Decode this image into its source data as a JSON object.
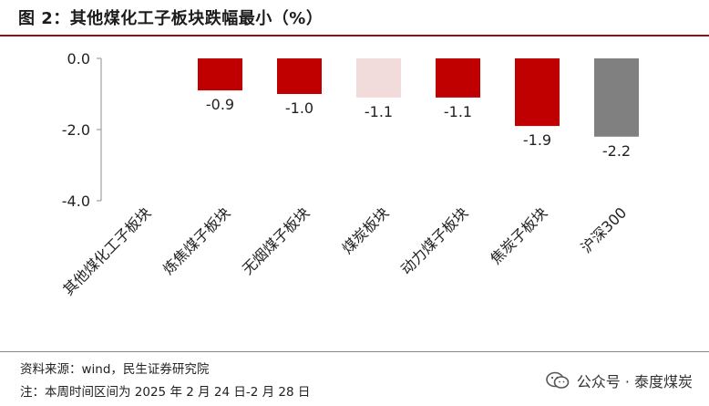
{
  "title": "图 2：其他煤化工子板块跌幅最小（%）",
  "chart_data": {
    "type": "bar",
    "categories": [
      "其他煤化工子板块",
      "炼焦煤子板块",
      "无烟煤子板块",
      "煤炭板块",
      "动力煤子板块",
      "焦炭子板块",
      "沪深300"
    ],
    "values": [
      0.0,
      -0.9,
      -1.0,
      -1.1,
      -1.1,
      -1.9,
      -2.2
    ],
    "value_labels": [
      "",
      "-0.9",
      "-1.0",
      "-1.1",
      "-1.1",
      "-1.9",
      "-2.2"
    ],
    "colors": [
      "#c00000",
      "#c00000",
      "#c00000",
      "#f2dcdb",
      "#c00000",
      "#c00000",
      "#808080"
    ],
    "yticks": [
      "0.0",
      "-2.0",
      "-4.0"
    ],
    "ytick_values": [
      0,
      -2,
      -4
    ],
    "ylim": [
      -4,
      0
    ],
    "grid": false,
    "legend": "none"
  },
  "footer": {
    "source": "资料来源：wind，民生证券研究院",
    "period": "注：本周时间区间为 2025 年 2 月 24 日-2 月 28 日"
  },
  "watermark": {
    "text": "公众号 · 泰度煤炭",
    "icon": "wechat-icon"
  }
}
